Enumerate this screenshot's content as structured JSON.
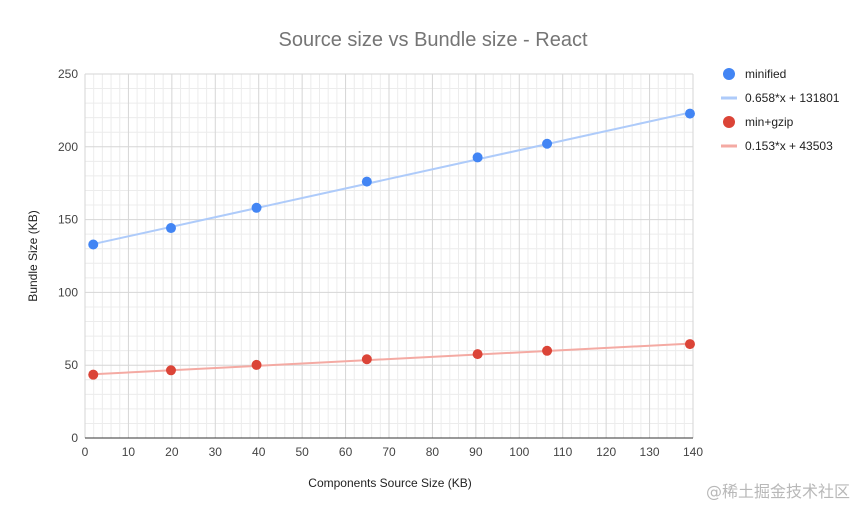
{
  "chart_data": {
    "type": "scatter",
    "title": "Source size vs Bundle size - React",
    "xlabel": "Components Source Size (KB)",
    "ylabel": "Bundle Size (KB)",
    "xlim": [
      0,
      140
    ],
    "ylim": [
      0,
      250
    ],
    "x_ticks": [
      0,
      10,
      20,
      30,
      40,
      50,
      60,
      70,
      80,
      90,
      100,
      110,
      120,
      130,
      140
    ],
    "y_ticks": [
      0,
      50,
      100,
      150,
      200,
      250
    ],
    "grid": true,
    "legend_position": "right",
    "series": [
      {
        "name": "minified",
        "color": "#4285f4",
        "points": [
          {
            "x": 1.9,
            "y": 132.9
          },
          {
            "x": 19.8,
            "y": 144.2
          },
          {
            "x": 39.5,
            "y": 158.1
          },
          {
            "x": 64.9,
            "y": 176.1
          },
          {
            "x": 90.4,
            "y": 192.7
          },
          {
            "x": 106.4,
            "y": 202.1
          },
          {
            "x": 139.3,
            "y": 222.8
          }
        ]
      },
      {
        "name": "min+gzip",
        "color": "#db4437",
        "points": [
          {
            "x": 1.9,
            "y": 43.5
          },
          {
            "x": 19.8,
            "y": 46.5
          },
          {
            "x": 39.5,
            "y": 50.2
          },
          {
            "x": 64.9,
            "y": 54.1
          },
          {
            "x": 90.4,
            "y": 57.6
          },
          {
            "x": 106.4,
            "y": 59.9
          },
          {
            "x": 139.3,
            "y": 64.5
          }
        ]
      }
    ],
    "trendlines": [
      {
        "name": "0.658*x + 131801",
        "color": "#aecbfa",
        "x": [
          1.9,
          139.3
        ],
        "y": [
          133.2,
          223.5
        ]
      },
      {
        "name": "0.153*x + 43503",
        "color": "#f4aaa3",
        "x": [
          1.9,
          139.3
        ],
        "y": [
          43.8,
          64.8
        ]
      }
    ]
  },
  "watermark": "@稀土掘金技术社区"
}
